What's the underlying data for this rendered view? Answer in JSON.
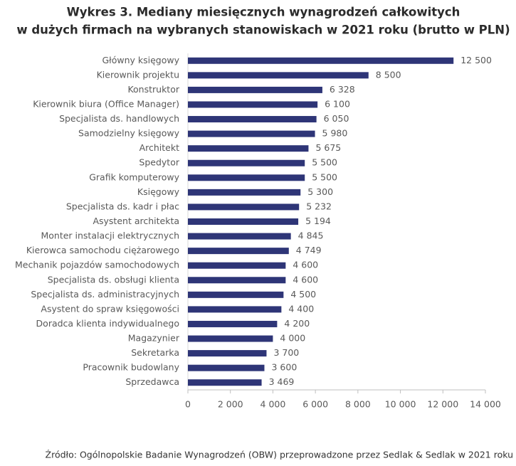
{
  "chart_data": {
    "type": "bar",
    "orientation": "horizontal",
    "title": [
      "Wykres 3. Mediany miesięcznych wynagrodzeń całkowitych",
      "w dużych firmach na wybranych stanowiskach w 2021 roku (brutto w PLN)"
    ],
    "categories": [
      "Główny księgowy",
      "Kierownik projektu",
      "Konstruktor",
      "Kierownik biura (Office Manager)",
      "Specjalista ds. handlowych",
      "Samodzielny księgowy",
      "Architekt",
      "Spedytor",
      "Grafik komputerowy",
      "Księgowy",
      "Specjalista ds. kadr i płac",
      "Asystent architekta",
      "Monter instalacji elektrycznych",
      "Kierowca samochodu ciężarowego",
      "Mechanik pojazdów samochodowych",
      "Specjalista ds. obsługi klienta",
      "Specjalista ds. administracyjnych",
      "Asystent do spraw księgowości",
      "Doradca klienta indywidualnego",
      "Magazynier",
      "Sekretarka",
      "Pracownik budowlany",
      "Sprzedawca"
    ],
    "values": [
      12500,
      8500,
      6328,
      6100,
      6050,
      5980,
      5675,
      5500,
      5500,
      5300,
      5232,
      5194,
      4845,
      4749,
      4600,
      4600,
      4500,
      4400,
      4200,
      4000,
      3700,
      3600,
      3469
    ],
    "value_labels": [
      "12 500",
      "8 500",
      "6 328",
      "6 100",
      "6 050",
      "5 980",
      "5 675",
      "5 500",
      "5 500",
      "5 300",
      "5 232",
      "5 194",
      "4 845",
      "4 749",
      "4 600",
      "4 600",
      "4 500",
      "4 400",
      "4 200",
      "4 000",
      "3 700",
      "3 600",
      "3 469"
    ],
    "color": "#2e3577",
    "xlim": [
      0,
      14000
    ],
    "xticks": [
      0,
      {
        "value": 2000,
        "label": "2 000"
      },
      {
        "value": 4000,
        "label": "4 000"
      },
      {
        "value": 6000,
        "label": "6 000"
      },
      {
        "value": 8000,
        "label": "8 000"
      },
      {
        "value": 10000,
        "label": "10 000"
      },
      {
        "value": 12000,
        "label": "12 000"
      },
      {
        "value": 14000,
        "label": "14 000"
      }
    ],
    "grid": false,
    "source": "Źródło: Ogólnopolskie Badanie Wynagrodzeń (OBW) przeprowadzone przez Sedlak & Sedlak w 2021 roku"
  }
}
